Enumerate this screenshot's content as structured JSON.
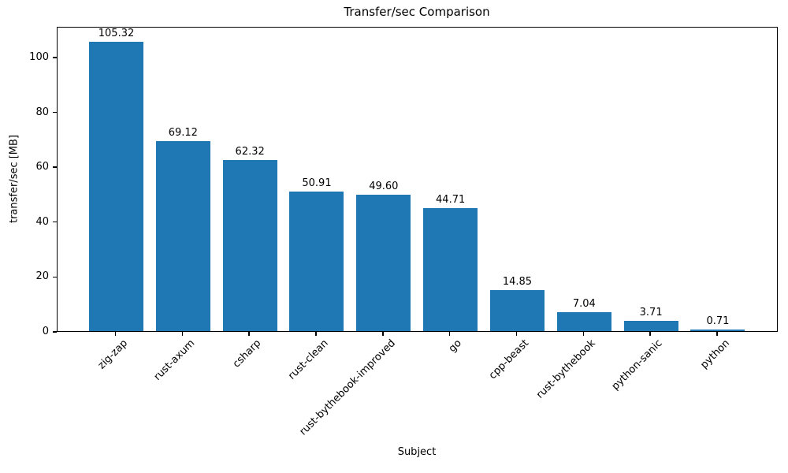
{
  "chart_data": {
    "type": "bar",
    "title": "Transfer/sec Comparison",
    "xlabel": "Subject",
    "ylabel": "transfer/sec [MB]",
    "categories": [
      "zig-zap",
      "rust-axum",
      "csharp",
      "rust-clean",
      "rust-bythebook-improved",
      "go",
      "cpp-beast",
      "rust-bythebook",
      "python-sanic",
      "python"
    ],
    "values": [
      105.32,
      69.12,
      62.32,
      50.91,
      49.6,
      44.71,
      14.85,
      7.04,
      3.71,
      0.71
    ],
    "value_labels": [
      "105.32",
      "69.12",
      "62.32",
      "50.91",
      "49.60",
      "44.71",
      "14.85",
      "7.04",
      "3.71",
      "0.71"
    ],
    "yticks": [
      0,
      20,
      40,
      60,
      80,
      100
    ],
    "ylim": [
      0,
      111.2
    ],
    "bar_color": "#1f77b4",
    "grid": false,
    "legend": null
  }
}
